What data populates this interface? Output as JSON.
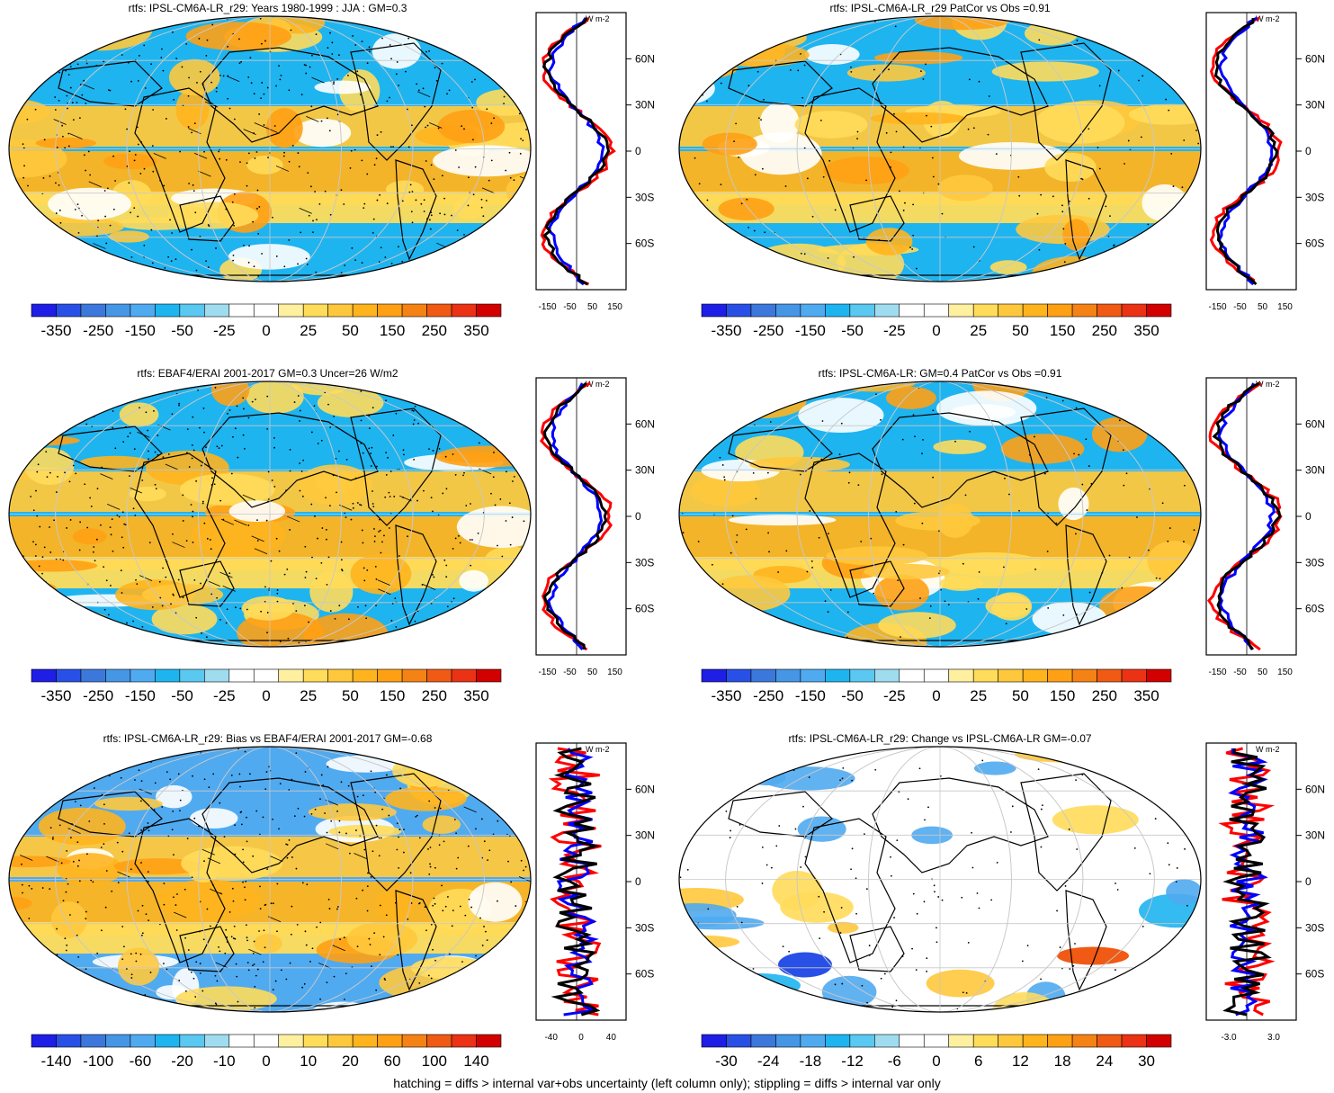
{
  "panels": [
    {
      "id": "p1",
      "title": "rtfs: IPSL-CM6A-LR_r29: Years 1980-1999 : JJA : GM=0.3",
      "colorbar_labels": [
        "-350",
        "-250",
        "-150",
        "-50",
        "-25",
        "0",
        "25",
        "50",
        "150",
        "250",
        "350"
      ],
      "profile_xticks": [
        "-150",
        "-50",
        "50",
        "150"
      ],
      "profile_unit": "W m-2",
      "lat_labels": [
        "60N",
        "30N",
        "0",
        "30S",
        "60S"
      ],
      "hatching": true,
      "stippling": "dense"
    },
    {
      "id": "p2",
      "title": "rtfs: IPSL-CM6A-LR_r29 PatCor vs Obs =0.91",
      "colorbar_labels": [
        "-350",
        "-250",
        "-150",
        "-50",
        "-25",
        "0",
        "25",
        "50",
        "150",
        "250",
        "350"
      ],
      "profile_xticks": [
        "-150",
        "-50",
        "50",
        "150"
      ],
      "profile_unit": "W m-2",
      "lat_labels": [
        "60N",
        "30N",
        "0",
        "30S",
        "60S"
      ],
      "hatching": false,
      "stippling": "sparse"
    },
    {
      "id": "p3",
      "title": "rtfs: EBAF4/ERAI 2001-2017 GM=0.3 Uncer=26 W/m2",
      "colorbar_labels": [
        "-350",
        "-250",
        "-150",
        "-50",
        "-25",
        "0",
        "25",
        "50",
        "150",
        "250",
        "350"
      ],
      "profile_xticks": [
        "-150",
        "-50",
        "50",
        "150"
      ],
      "profile_unit": "W m-2",
      "lat_labels": [
        "60N",
        "30N",
        "0",
        "30S",
        "60S"
      ],
      "hatching": true,
      "stippling": "dense"
    },
    {
      "id": "p4",
      "title": "rtfs: IPSL-CM6A-LR: GM=0.4 PatCor vs Obs =0.91",
      "colorbar_labels": [
        "-350",
        "-250",
        "-150",
        "-50",
        "-25",
        "0",
        "25",
        "50",
        "150",
        "250",
        "350"
      ],
      "profile_xticks": [
        "-150",
        "-50",
        "50",
        "150"
      ],
      "profile_unit": "W m-2",
      "lat_labels": [
        "60N",
        "30N",
        "0",
        "30S",
        "60S"
      ],
      "hatching": false,
      "stippling": "sparse"
    },
    {
      "id": "p5",
      "title": "rtfs: IPSL-CM6A-LR_r29: Bias vs EBAF4/ERAI 2001-2017 GM=-0.68",
      "colorbar_labels": [
        "-140",
        "-100",
        "-60",
        "-20",
        "-10",
        "0",
        "10",
        "20",
        "60",
        "100",
        "140"
      ],
      "profile_xticks": [
        "-40",
        "0",
        "40"
      ],
      "profile_unit": "W m-2",
      "lat_labels": [
        "60N",
        "30N",
        "0",
        "30S",
        "60S"
      ],
      "hatching": true,
      "stippling": "dense"
    },
    {
      "id": "p6",
      "title": "rtfs: IPSL-CM6A-LR_r29: Change vs IPSL-CM6A-LR GM=-0.07",
      "colorbar_labels": [
        "-30",
        "-24",
        "-18",
        "-12",
        "-6",
        "0",
        "6",
        "12",
        "18",
        "24",
        "30"
      ],
      "profile_xticks": [
        "-3.0",
        "3.0"
      ],
      "profile_unit": "W m-2",
      "lat_labels": [
        "60N",
        "30N",
        "0",
        "30S",
        "60S"
      ],
      "hatching": false,
      "stippling": "sparse"
    }
  ],
  "colors": {
    "scale": [
      "#1e1ee6",
      "#2850e6",
      "#3c78dc",
      "#4696e6",
      "#50aaf0",
      "#1eb4f0",
      "#5ac8f0",
      "#a0dcf0",
      "#ffffff",
      "#ffffff",
      "#fff0a0",
      "#ffdc5a",
      "#ffc83c",
      "#ffb41e",
      "#ffa014",
      "#f58214",
      "#f05a14",
      "#eb3214",
      "#d20000"
    ],
    "profile_series": [
      "#ff0000",
      "#0000ff",
      "#000000"
    ]
  },
  "footnote": "hatching = diffs > internal var+obs uncertainty (left column only); stippling = diffs > internal var only"
}
